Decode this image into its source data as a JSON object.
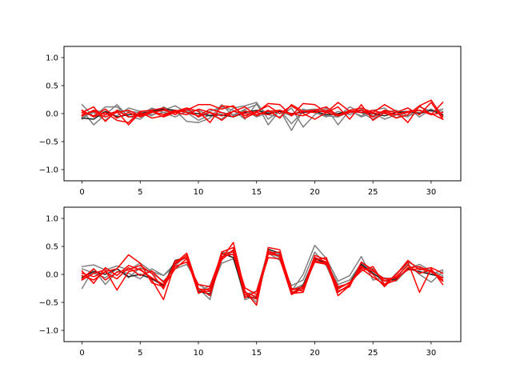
{
  "chart_data": [
    {
      "type": "line",
      "title": "",
      "xlabel": "",
      "ylabel": "",
      "xlim": [
        -1.55,
        32.55
      ],
      "ylim": [
        -1.2,
        1.2
      ],
      "grid": false,
      "xticks": [
        0,
        5,
        10,
        15,
        20,
        25,
        30
      ],
      "yticks": [
        -1.0,
        -0.5,
        0.0,
        0.5,
        1.0
      ],
      "ytick_labels": [
        "−1.0",
        "−0.5",
        "0.0",
        "0.5",
        "1.0"
      ],
      "x": [
        0,
        1,
        2,
        3,
        4,
        5,
        6,
        7,
        8,
        9,
        10,
        11,
        12,
        13,
        14,
        15,
        16,
        17,
        18,
        19,
        20,
        21,
        22,
        23,
        24,
        25,
        26,
        27,
        28,
        29,
        30,
        31
      ],
      "series": [
        {
          "color": "#808080",
          "values": [
            0.16,
            -0.06,
            0.12,
            0.12,
            -0.05,
            -0.1,
            0.08,
            0.06,
            0.14,
            0.02,
            -0.12,
            -0.02,
            -0.1,
            0.1,
            0.14,
            0.2,
            -0.1,
            0.06,
            -0.18,
            0.04,
            0.02,
            -0.04,
            -0.06,
            0.04,
            -0.04,
            0.06,
            0.1,
            -0.08,
            0.04,
            0.02,
            0.06,
            0.04
          ]
        },
        {
          "color": "#808080",
          "values": [
            0.06,
            -0.2,
            -0.02,
            0.16,
            -0.06,
            -0.02,
            0.1,
            0.02,
            0.06,
            -0.14,
            -0.16,
            -0.08,
            0.16,
            -0.04,
            0.08,
            0.16,
            -0.02,
            -0.06,
            0.1,
            -0.24,
            -0.02,
            0.1,
            -0.2,
            0.06,
            -0.06,
            0.02,
            -0.1,
            -0.02,
            -0.06,
            0.12,
            0.04,
            0.08
          ]
        },
        {
          "color": "#808080",
          "values": [
            -0.06,
            0.02,
            -0.12,
            0.06,
            0.04,
            0.02,
            -0.04,
            0.12,
            0.02,
            0.08,
            -0.06,
            0.04,
            0.12,
            0.06,
            -0.1,
            0.18,
            -0.2,
            0.06,
            -0.3,
            0.06,
            0.08,
            0.04,
            -0.06,
            0.12,
            0.02,
            -0.1,
            0.06,
            0.02,
            0.1,
            -0.06,
            0.08,
            -0.02
          ]
        },
        {
          "color": "#808080",
          "values": [
            -0.1,
            0.06,
            0.02,
            -0.04,
            0.1,
            0.04,
            -0.02,
            0.02,
            -0.06,
            0.04,
            0.06,
            -0.04,
            0.02,
            -0.02,
            0.06,
            -0.06,
            0.02,
            0.04,
            -0.04,
            0.08,
            0.02,
            -0.06,
            0.04,
            -0.02,
            0.08,
            -0.04,
            0.02,
            0.06,
            -0.04,
            0.02,
            0.08,
            -0.04
          ]
        },
        {
          "color": "#222222",
          "values": [
            -0.08,
            -0.1,
            0.04,
            -0.06,
            -0.02,
            0.0,
            0.04,
            0.08,
            0.06,
            0.02,
            0.0,
            -0.04,
            -0.02,
            -0.06,
            0.02,
            0.06,
            0.0,
            0.04,
            0.0,
            0.02,
            0.04,
            -0.02,
            0.0,
            0.04,
            0.02,
            0.0,
            -0.04,
            0.02,
            0.04,
            0.0,
            0.06,
            -0.02
          ]
        },
        {
          "color": "#ff0000",
          "values": [
            0.02,
            0.12,
            -0.14,
            0.06,
            -0.06,
            -0.02,
            0.04,
            -0.06,
            0.02,
            0.06,
            0.16,
            0.16,
            0.08,
            0.14,
            -0.08,
            0.02,
            0.18,
            0.16,
            -0.04,
            0.18,
            0.16,
            0.02,
            0.2,
            0.04,
            0.06,
            -0.06,
            0.06,
            0.02,
            0.1,
            -0.02,
            0.2,
            -0.1
          ]
        },
        {
          "color": "#ff0000",
          "values": [
            0.06,
            -0.06,
            0.02,
            -0.12,
            -0.16,
            0.04,
            0.06,
            0.1,
            -0.02,
            0.1,
            0.04,
            -0.16,
            0.14,
            0.12,
            -0.04,
            0.04,
            0.14,
            0.0,
            0.14,
            0.0,
            -0.1,
            0.02,
            0.12,
            -0.1,
            0.16,
            -0.12,
            0.02,
            -0.08,
            -0.02,
            0.14,
            -0.02,
            0.2
          ]
        },
        {
          "color": "#ff0000",
          "values": [
            -0.04,
            0.06,
            -0.02,
            0.04,
            -0.2,
            0.02,
            -0.08,
            -0.04,
            0.04,
            0.1,
            -0.06,
            0.02,
            -0.12,
            0.04,
            0.12,
            -0.04,
            0.06,
            -0.08,
            0.16,
            0.04,
            0.06,
            0.12,
            -0.04,
            0.06,
            0.1,
            0.02,
            0.16,
            0.04,
            -0.16,
            0.14,
            0.24,
            -0.06
          ]
        },
        {
          "color": "#ff0000",
          "values": [
            0.02,
            -0.04,
            0.08,
            -0.08,
            0.02,
            -0.06,
            0.02,
            0.06,
            0.02,
            -0.02,
            0.08,
            0.02,
            -0.04,
            0.04,
            0.0,
            -0.02,
            0.04,
            0.06,
            -0.02,
            0.04,
            0.02,
            0.06,
            -0.02,
            0.04,
            0.02,
            0.06,
            0.0,
            -0.02,
            0.04,
            0.06,
            -0.02,
            0.02
          ]
        },
        {
          "color": "#ff0000",
          "values": [
            -0.02,
            0.04,
            -0.06,
            0.02,
            0.06,
            -0.04,
            0.04,
            -0.02,
            0.06,
            0.02,
            -0.04,
            0.08,
            0.02,
            -0.06,
            0.04,
            0.02,
            -0.02,
            0.06,
            0.0,
            -0.04,
            0.06,
            0.02,
            -0.04,
            0.02,
            0.06,
            0.0,
            0.04,
            -0.02,
            0.02,
            0.06,
            0.0,
            -0.1
          ]
        }
      ]
    },
    {
      "type": "line",
      "title": "",
      "xlabel": "",
      "ylabel": "",
      "xlim": [
        -1.55,
        32.55
      ],
      "ylim": [
        -1.2,
        1.2
      ],
      "grid": false,
      "xticks": [
        0,
        5,
        10,
        15,
        20,
        25,
        30
      ],
      "yticks": [
        -1.0,
        -0.5,
        0.0,
        0.5,
        1.0
      ],
      "ytick_labels": [
        "−1.0",
        "−0.5",
        "0.0",
        "0.5",
        "1.0"
      ],
      "x": [
        0,
        1,
        2,
        3,
        4,
        5,
        6,
        7,
        8,
        9,
        10,
        11,
        12,
        13,
        14,
        15,
        16,
        17,
        18,
        19,
        20,
        21,
        22,
        23,
        24,
        25,
        26,
        27,
        28,
        29,
        30,
        31
      ],
      "series": [
        {
          "color": "#808080",
          "values": [
            0.14,
            0.17,
            0.08,
            0.15,
            0.08,
            0.2,
            0.05,
            -0.02,
            0.2,
            0.3,
            -0.25,
            -0.45,
            0.4,
            0.35,
            -0.45,
            -0.38,
            0.4,
            0.3,
            -0.3,
            0.0,
            0.52,
            0.28,
            -0.12,
            -0.02,
            0.32,
            -0.1,
            -0.06,
            -0.1,
            0.22,
            0.12,
            0.0,
            0.08
          ]
        },
        {
          "color": "#808080",
          "values": [
            -0.25,
            0.1,
            -0.18,
            0.05,
            0.02,
            -0.08,
            0.1,
            -0.02,
            0.15,
            0.35,
            -0.3,
            -0.2,
            0.35,
            0.42,
            -0.3,
            -0.5,
            0.38,
            0.25,
            -0.2,
            -0.1,
            0.4,
            0.15,
            -0.3,
            -0.2,
            0.15,
            0.1,
            -0.2,
            0.02,
            0.18,
            0.0,
            -0.14,
            0.05
          ]
        },
        {
          "color": "#808080",
          "values": [
            0.1,
            0.02,
            -0.06,
            0.1,
            -0.06,
            0.12,
            0.02,
            -0.12,
            0.1,
            0.18,
            -0.18,
            -0.3,
            0.2,
            0.28,
            -0.36,
            -0.3,
            0.42,
            0.35,
            -0.28,
            -0.18,
            0.3,
            0.22,
            -0.18,
            -0.1,
            0.2,
            0.05,
            -0.08,
            -0.12,
            0.1,
            0.18,
            0.06,
            -0.02
          ]
        },
        {
          "color": "#222222",
          "values": [
            -0.05,
            0.05,
            0.0,
            0.1,
            -0.04,
            0.0,
            -0.08,
            -0.2,
            0.25,
            0.3,
            -0.3,
            -0.35,
            0.38,
            0.3,
            -0.4,
            -0.42,
            0.45,
            0.38,
            -0.35,
            -0.2,
            0.28,
            0.2,
            -0.25,
            -0.15,
            0.18,
            0.02,
            -0.12,
            -0.08,
            0.1,
            0.05,
            0.0,
            -0.05
          ]
        },
        {
          "color": "#ff0000",
          "values": [
            -0.1,
            0.02,
            0.08,
            -0.28,
            0.05,
            0.1,
            -0.1,
            -0.45,
            0.2,
            0.38,
            -0.25,
            -0.38,
            0.28,
            0.57,
            -0.3,
            -0.55,
            0.48,
            0.44,
            -0.34,
            -0.32,
            0.3,
            0.22,
            -0.38,
            -0.2,
            0.15,
            0.0,
            -0.22,
            0.0,
            0.22,
            -0.32,
            0.1,
            -0.18
          ]
        },
        {
          "color": "#ff0000",
          "values": [
            -0.02,
            -0.1,
            0.05,
            0.1,
            0.35,
            0.2,
            -0.15,
            -0.22,
            0.1,
            0.28,
            -0.32,
            -0.3,
            0.4,
            0.48,
            -0.42,
            -0.3,
            0.38,
            0.4,
            -0.25,
            -0.3,
            0.25,
            0.3,
            -0.32,
            -0.18,
            0.1,
            -0.05,
            -0.18,
            0.0,
            0.25,
            0.08,
            0.12,
            0.02
          ]
        },
        {
          "color": "#ff0000",
          "values": [
            0.06,
            -0.16,
            0.12,
            -0.02,
            0.16,
            0.08,
            -0.06,
            -0.18,
            0.18,
            0.34,
            -0.26,
            -0.28,
            0.32,
            0.36,
            -0.36,
            -0.44,
            0.42,
            0.32,
            -0.32,
            -0.26,
            0.34,
            0.26,
            -0.3,
            -0.22,
            0.22,
            0.08,
            -0.12,
            -0.04,
            0.16,
            0.02,
            0.08,
            -0.1
          ]
        },
        {
          "color": "#ff0000",
          "values": [
            -0.08,
            0.1,
            -0.1,
            0.04,
            0.08,
            0.16,
            0.02,
            -0.26,
            0.24,
            0.3,
            -0.34,
            -0.24,
            0.26,
            0.44,
            -0.24,
            -0.36,
            0.3,
            0.28,
            -0.36,
            -0.24,
            0.22,
            0.18,
            -0.26,
            -0.14,
            0.06,
            0.14,
            -0.18,
            -0.1,
            0.12,
            0.14,
            0.04,
            -0.06
          ]
        },
        {
          "color": "#ff0000",
          "values": [
            0.02,
            -0.04,
            0.04,
            -0.08,
            0.12,
            -0.02,
            0.06,
            -0.14,
            0.14,
            0.22,
            -0.18,
            -0.22,
            0.36,
            0.4,
            -0.32,
            -0.4,
            0.36,
            0.34,
            -0.28,
            -0.22,
            0.24,
            0.2,
            -0.22,
            -0.16,
            0.12,
            0.06,
            -0.08,
            -0.06,
            0.08,
            0.1,
            0.06,
            -0.12
          ]
        }
      ]
    }
  ]
}
